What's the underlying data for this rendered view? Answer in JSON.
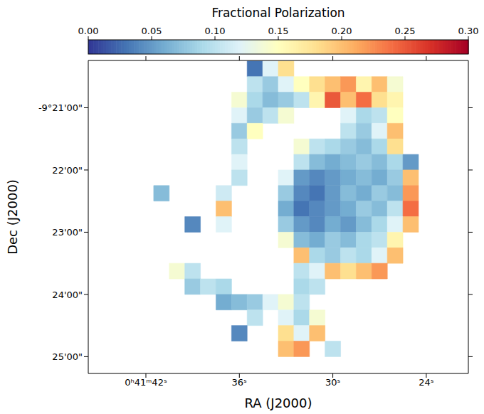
{
  "chart_data": {
    "type": "heatmap",
    "x_label": "RA (J2000)",
    "y_label": "Dec (J2000)",
    "xlim": [
      45.7,
      21.3
    ],
    "xticks": [
      {
        "value": 42,
        "label": "0ʰ41ᵐ42ˢ"
      },
      {
        "value": 36,
        "label": "36ˢ"
      },
      {
        "value": 30,
        "label": "30ˢ"
      },
      {
        "value": 24,
        "label": "24ˢ"
      }
    ],
    "ylim": [
      -565.27,
      -560.24
    ],
    "yticks": [
      {
        "value": -561,
        "label": "-9°21'00\""
      },
      {
        "value": -562,
        "label": "22'00\""
      },
      {
        "value": -563,
        "label": "23'00\""
      },
      {
        "value": -564,
        "label": "24'00\""
      },
      {
        "value": -565,
        "label": "25'00\""
      }
    ],
    "colorbar": {
      "label": "Fractional Polarization",
      "range": [
        0,
        0.3
      ],
      "ticks": [
        {
          "value": 0,
          "label": "0.00"
        },
        {
          "value": 0.05,
          "label": "0.05"
        },
        {
          "value": 0.1,
          "label": "0.10"
        },
        {
          "value": 0.15,
          "label": "0.15"
        },
        {
          "value": 0.2,
          "label": "0.20"
        },
        {
          "value": 0.25,
          "label": "0.25"
        },
        {
          "value": 0.3,
          "label": "0.30"
        }
      ]
    },
    "heatmap": {
      "x": [
        45,
        44,
        43,
        42,
        41,
        40,
        39,
        38,
        37,
        36,
        35,
        34,
        33,
        32,
        31,
        30,
        29,
        28,
        27,
        26,
        25,
        24,
        23,
        22
      ],
      "y": [
        -560.375,
        -560.625,
        -560.875,
        -561.125,
        -561.375,
        -561.625,
        -561.875,
        -562.125,
        -562.375,
        -562.625,
        -562.875,
        -563.125,
        -563.375,
        -563.625,
        -563.875,
        -564.125,
        -564.375,
        -564.625,
        -564.875
      ],
      "values": [
        [
          null,
          null,
          null,
          null,
          null,
          null,
          null,
          null,
          null,
          null,
          0.03,
          0.12,
          0.18,
          null,
          null,
          null,
          null,
          null,
          null,
          null,
          null,
          null,
          null,
          null
        ],
        [
          null,
          null,
          null,
          null,
          null,
          null,
          null,
          null,
          null,
          null,
          0.1,
          0.08,
          0.12,
          0.15,
          0.18,
          0.2,
          0.22,
          0.16,
          0.2,
          0.14,
          null,
          null,
          null,
          null
        ],
        [
          null,
          null,
          null,
          null,
          null,
          null,
          null,
          null,
          null,
          0.14,
          0.09,
          0.07,
          0.08,
          0.1,
          0.16,
          0.25,
          0.2,
          0.24,
          0.18,
          0.16,
          null,
          null,
          null,
          null
        ],
        [
          null,
          null,
          null,
          null,
          null,
          null,
          null,
          null,
          null,
          0.12,
          0.08,
          0.1,
          0.14,
          null,
          null,
          null,
          0.12,
          0.09,
          0.1,
          0.15,
          null,
          null,
          null,
          null
        ],
        [
          null,
          null,
          null,
          null,
          null,
          null,
          null,
          null,
          null,
          0.08,
          0.15,
          null,
          null,
          null,
          null,
          null,
          0.1,
          0.08,
          0.12,
          0.2,
          null,
          null,
          null,
          null
        ],
        [
          null,
          null,
          null,
          null,
          null,
          null,
          null,
          null,
          null,
          0.1,
          null,
          null,
          null,
          0.14,
          0.1,
          0.09,
          0.08,
          0.07,
          0.09,
          0.18,
          null,
          null,
          null,
          null
        ],
        [
          null,
          null,
          null,
          null,
          null,
          null,
          null,
          null,
          null,
          0.12,
          null,
          null,
          null,
          0.1,
          0.07,
          0.06,
          0.07,
          0.08,
          0.07,
          0.09,
          0.05,
          null,
          null,
          null
        ],
        [
          null,
          null,
          null,
          null,
          null,
          null,
          null,
          null,
          null,
          0.1,
          null,
          null,
          0.12,
          0.05,
          0.04,
          0.05,
          0.06,
          0.07,
          0.06,
          0.08,
          0.2,
          null,
          null,
          null
        ],
        [
          null,
          null,
          null,
          null,
          0.07,
          null,
          null,
          null,
          0.11,
          null,
          null,
          null,
          0.08,
          0.04,
          0.03,
          0.05,
          0.07,
          0.06,
          0.08,
          0.07,
          0.22,
          null,
          null,
          null
        ],
        [
          null,
          null,
          null,
          null,
          null,
          null,
          null,
          null,
          0.2,
          null,
          null,
          null,
          0.06,
          0.03,
          0.04,
          0.05,
          0.06,
          0.08,
          0.07,
          0.1,
          0.24,
          null,
          null,
          null
        ],
        [
          null,
          null,
          null,
          null,
          null,
          null,
          0.04,
          null,
          0.12,
          null,
          null,
          null,
          0.08,
          0.05,
          0.04,
          0.06,
          0.05,
          0.07,
          0.09,
          0.12,
          0.2,
          null,
          null,
          null
        ],
        [
          null,
          null,
          null,
          null,
          null,
          null,
          null,
          null,
          null,
          null,
          null,
          null,
          0.14,
          0.07,
          0.06,
          0.08,
          0.07,
          0.09,
          0.1,
          0.16,
          null,
          null,
          null,
          null
        ],
        [
          null,
          null,
          null,
          null,
          null,
          null,
          null,
          null,
          null,
          null,
          null,
          null,
          null,
          0.2,
          0.09,
          0.08,
          0.1,
          0.09,
          0.12,
          0.2,
          null,
          null,
          null,
          null
        ],
        [
          null,
          null,
          null,
          null,
          null,
          0.14,
          0.1,
          null,
          null,
          null,
          null,
          null,
          null,
          0.1,
          0.12,
          0.2,
          0.18,
          0.2,
          0.22,
          null,
          null,
          null,
          null,
          null
        ],
        [
          null,
          null,
          null,
          null,
          null,
          null,
          0.08,
          0.1,
          0.09,
          null,
          null,
          null,
          null,
          0.09,
          0.1,
          null,
          null,
          null,
          null,
          null,
          null,
          null,
          null,
          null
        ],
        [
          null,
          null,
          null,
          null,
          null,
          null,
          null,
          null,
          0.06,
          0.07,
          0.08,
          0.12,
          0.14,
          0.1,
          null,
          null,
          null,
          null,
          null,
          null,
          null,
          null,
          null,
          null
        ],
        [
          null,
          null,
          null,
          null,
          null,
          null,
          null,
          null,
          null,
          null,
          0.1,
          null,
          0.12,
          0.09,
          0.14,
          null,
          null,
          null,
          null,
          null,
          null,
          null,
          null,
          null
        ],
        [
          null,
          null,
          null,
          null,
          null,
          null,
          null,
          null,
          null,
          0.04,
          null,
          null,
          0.18,
          0.12,
          0.2,
          null,
          null,
          null,
          null,
          null,
          null,
          null,
          null,
          null
        ],
        [
          null,
          null,
          null,
          null,
          null,
          null,
          null,
          null,
          null,
          null,
          null,
          null,
          0.2,
          0.22,
          null,
          0.1,
          null,
          null,
          null,
          null,
          null,
          null,
          null,
          null
        ]
      ]
    }
  }
}
